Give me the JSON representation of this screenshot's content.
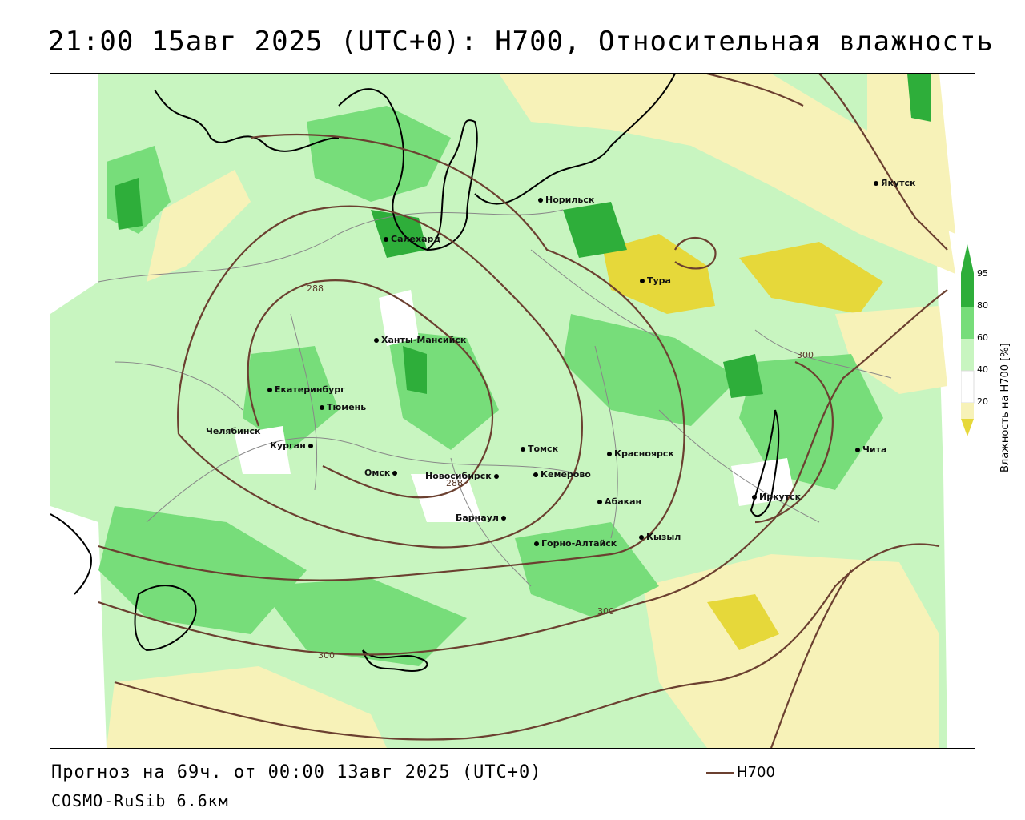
{
  "title": "21:00 15авг 2025 (UTC+0): H700, Относительная влажность",
  "footer": {
    "forecast": "Прогноз на 69ч. от 00:00 13авг 2025 (UTC+0)",
    "model": "COSMO-RuSib 6.6км",
    "line_legend": "H700"
  },
  "colors": {
    "very_dry": "#e6d83a",
    "dry": "#f7f2b8",
    "light_green": "#c8f5c0",
    "green": "#77dd7a",
    "dark_green": "#2eae3a",
    "isoline": "#6b4030",
    "coast": "#000000",
    "borders": "#888888"
  },
  "legend": {
    "title": "Влажность на H700 [%]",
    "ticks": [
      "95",
      "80",
      "60",
      "40",
      "20"
    ]
  },
  "isolines": [
    "288",
    "288",
    "300",
    "300",
    "300"
  ],
  "cities": [
    {
      "name": "Якутск"
    },
    {
      "name": "Норильск"
    },
    {
      "name": "Салехард"
    },
    {
      "name": "Тура"
    },
    {
      "name": "Ханты-Мансийск"
    },
    {
      "name": "Екатеринбург"
    },
    {
      "name": "Тюмень"
    },
    {
      "name": "Челябинск"
    },
    {
      "name": "Курган"
    },
    {
      "name": "Омск"
    },
    {
      "name": "Новосибирск"
    },
    {
      "name": "Томск"
    },
    {
      "name": "Кемерово"
    },
    {
      "name": "Красноярск"
    },
    {
      "name": "Барнаул"
    },
    {
      "name": "Абакан"
    },
    {
      "name": "Горно-Алтайск"
    },
    {
      "name": "Кызыл"
    },
    {
      "name": "Иркутск"
    },
    {
      "name": "Чита"
    }
  ]
}
